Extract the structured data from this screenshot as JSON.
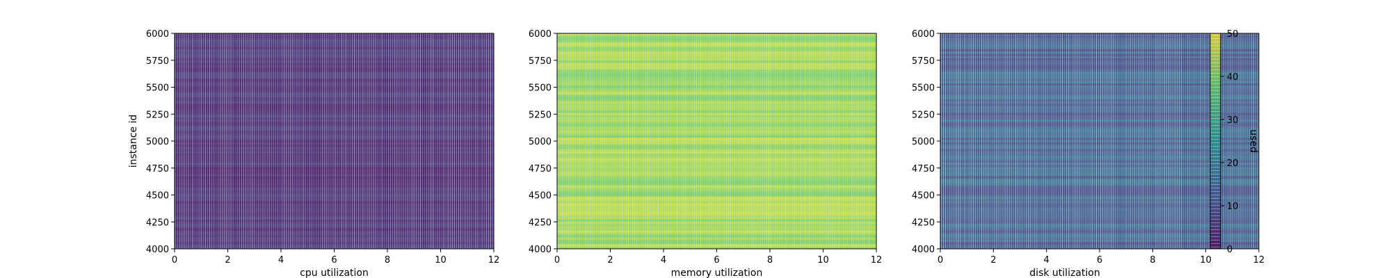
{
  "chart_data": {
    "type": "heatmap",
    "shared": {
      "xlim": [
        0,
        12
      ],
      "ylim": [
        4000,
        6000
      ],
      "x_ticks": [
        0,
        2,
        4,
        6,
        8,
        10,
        12
      ],
      "y_ticks": [
        4000,
        4250,
        4500,
        4750,
        5000,
        5250,
        5500,
        5750,
        6000
      ],
      "ylabel": "instance id",
      "colormap": "viridis",
      "color_range": [
        0,
        50
      ],
      "colorbar_ticks": [
        0,
        10,
        20,
        30,
        40,
        50
      ],
      "colorbar_label": "used",
      "grid": false
    },
    "panels": [
      {
        "xlabel": "cpu utilization",
        "typical_used": 5,
        "variability": 5
      },
      {
        "xlabel": "memory utilization",
        "typical_used": 42,
        "variability": 6
      },
      {
        "xlabel": "disk utilization",
        "typical_used": 14,
        "variability": 8
      }
    ]
  }
}
